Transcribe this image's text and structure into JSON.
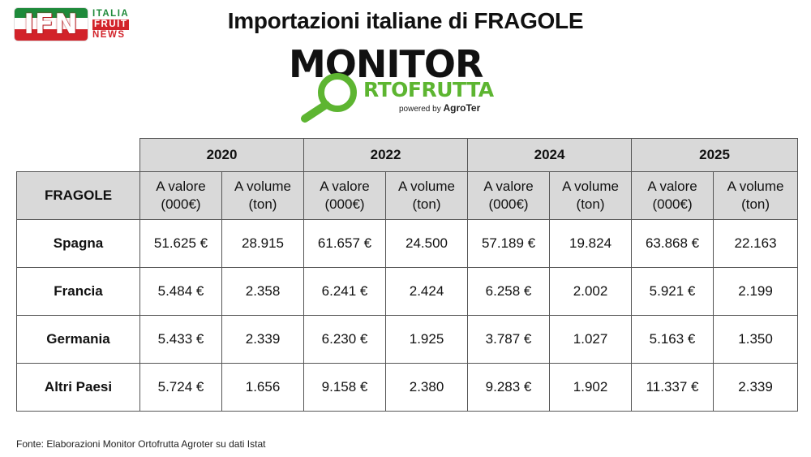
{
  "logo_ifn": {
    "main": "IFN",
    "line1": "ITALIA",
    "line2": "FRUIT",
    "line3": "NEWS"
  },
  "title": "Importazioni italiane di FRAGOLE",
  "logo_monitor": {
    "line1": "MONITOR",
    "line2": "RTOFRUTTA",
    "powered": "powered by",
    "brand": "AgroTer",
    "accent": "#5db531"
  },
  "table": {
    "label_header": "FRAGOLE",
    "years": [
      "2020",
      "2022",
      "2024",
      "2025"
    ],
    "sub_headers": {
      "valore": "A valore\n(000€)",
      "volume": "A volume\n(ton)"
    },
    "rows": [
      {
        "country": "Spagna",
        "cells": [
          "51.625 €",
          "28.915",
          "61.657 €",
          "24.500",
          "57.189 €",
          "19.824",
          "63.868 €",
          "22.163"
        ]
      },
      {
        "country": "Francia",
        "cells": [
          "5.484 €",
          "2.358",
          "6.241 €",
          "2.424",
          "6.258 €",
          "2.002",
          "5.921 €",
          "2.199"
        ]
      },
      {
        "country": "Germania",
        "cells": [
          "5.433 €",
          "2.339",
          "6.230 €",
          "1.925",
          "3.787 €",
          "1.027",
          "5.163 €",
          "1.350"
        ]
      },
      {
        "country": "Altri Paesi",
        "cells": [
          "5.724 €",
          "1.656",
          "9.158 €",
          "2.380",
          "9.283 €",
          "1.902",
          "11.337 €",
          "2.339"
        ]
      }
    ]
  },
  "source": "Fonte: Elaborazioni Monitor Ortofrutta Agroter su dati Istat"
}
